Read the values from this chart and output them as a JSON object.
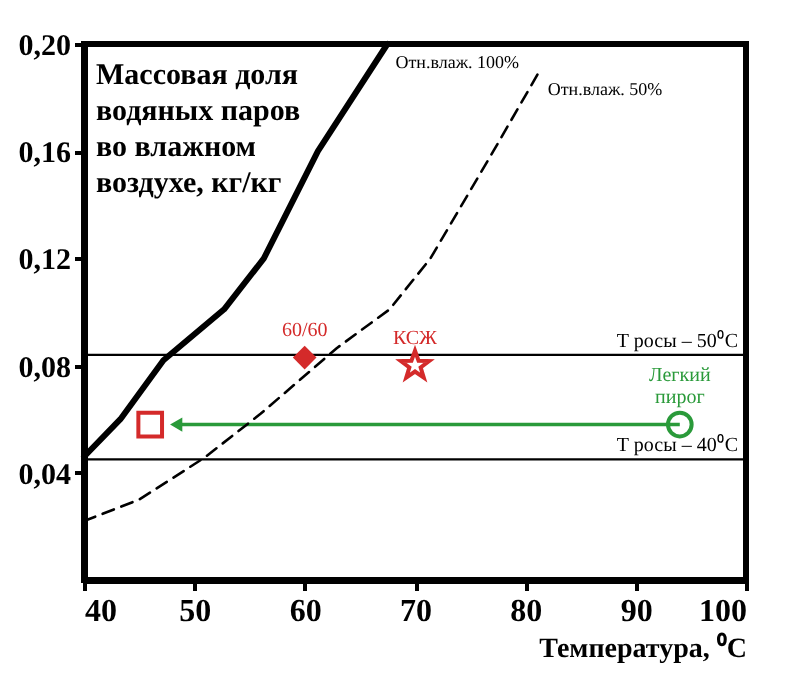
{
  "chart_data": {
    "type": "line",
    "xlabel": "Температура, ⁰C",
    "ylabel": "Массовая доля\nводяных паров\nво влажном\nвоздухе, кг/кг",
    "xlim": [
      40,
      100
    ],
    "xticks": [
      40,
      50,
      60,
      70,
      80,
      90,
      100
    ],
    "ylim": [
      0,
      0.2
    ],
    "yticks": [
      {
        "value": 0.04,
        "label": "0,04"
      },
      {
        "value": 0.08,
        "label": "0,08"
      },
      {
        "value": 0.12,
        "label": "0,12"
      },
      {
        "value": 0.16,
        "label": "0,16"
      },
      {
        "value": 0.2,
        "label": "0,20"
      }
    ],
    "grid": false,
    "series": [
      {
        "name": "Отн.влаж. 100%",
        "color": "#000000",
        "line_style": "solid",
        "x": [
          40,
          43.3,
          47.2,
          52.7,
          56.3,
          61.2,
          67.5
        ],
        "values": [
          0.046,
          0.06,
          0.082,
          0.101,
          0.12,
          0.16,
          0.2
        ]
      },
      {
        "name": "Отн.влаж. 50%",
        "color": "#000000",
        "line_style": "dashed",
        "x": [
          40,
          45,
          50.9,
          56,
          62.9,
          67.7,
          71.4,
          77.1,
          81.3
        ],
        "values": [
          0.022,
          0.03,
          0.0456,
          0.062,
          0.0865,
          0.101,
          0.12,
          0.16,
          0.19
        ]
      },
      {
        "type": "scatter",
        "name": "60/60",
        "color": "#d42a2a",
        "marker": "diamond",
        "x": [
          60
        ],
        "values": [
          0.083
        ]
      },
      {
        "type": "scatter",
        "name": "КСЖ",
        "color": "#d42a2a",
        "marker": "star",
        "x": [
          70
        ],
        "values": [
          0.08
        ]
      },
      {
        "type": "scatter",
        "color": "#d42a2a",
        "marker": "square",
        "x": [
          46
        ],
        "values": [
          0.058
        ]
      },
      {
        "type": "scatter",
        "name": "Легкий пирог",
        "color": "#2a9a3a",
        "marker": "circle",
        "x": [
          94
        ],
        "values": [
          0.058
        ]
      }
    ],
    "ref_lines": [
      {
        "axis": "y",
        "value": 0.084,
        "label": "Т росы – 50⁰С",
        "color": "#000000"
      },
      {
        "axis": "y",
        "value": 0.045,
        "label": "Т росы – 40⁰С",
        "color": "#000000"
      }
    ]
  }
}
